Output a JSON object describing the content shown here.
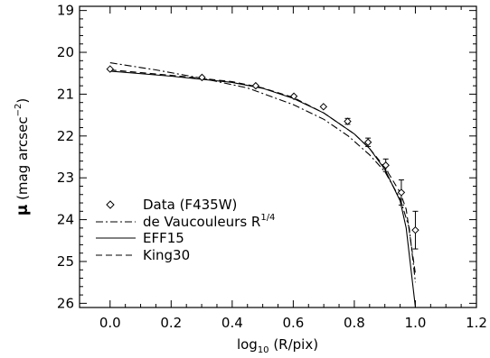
{
  "chart_data": {
    "type": "line",
    "xlabel_parts": [
      "log",
      "10",
      " (R/pix)"
    ],
    "ylabel_parts": [
      "μ",
      " (mag arcsec",
      "−2",
      ")"
    ],
    "xlim": [
      -0.1,
      1.2
    ],
    "ylim": [
      26.1,
      18.9
    ],
    "y_inverted": true,
    "x_ticks": [
      "0.0",
      "0.2",
      "0.4",
      "0.6",
      "0.8",
      "1.0",
      "1.2"
    ],
    "y_ticks": [
      "19",
      "20",
      "21",
      "22",
      "23",
      "24",
      "25",
      "26"
    ],
    "legend_position": "lower-left",
    "series": [
      {
        "name": "Data (F435W)",
        "style": "diamond",
        "x": [
          0.0,
          0.301,
          0.477,
          0.602,
          0.699,
          0.778,
          0.845,
          0.903,
          0.954,
          1.0
        ],
        "y": [
          20.4,
          20.6,
          20.8,
          21.05,
          21.3,
          21.65,
          22.15,
          22.7,
          23.35,
          24.25
        ],
        "yerr": [
          0.03,
          0.03,
          0.04,
          0.05,
          0.06,
          0.07,
          0.1,
          0.15,
          0.3,
          0.45
        ]
      },
      {
        "name_parts": [
          "de Vaucouleurs R",
          "1/4"
        ],
        "style": "dash-dot",
        "x": [
          0.0,
          0.15,
          0.3,
          0.45,
          0.6,
          0.7,
          0.78,
          0.85,
          0.9,
          0.95,
          0.98,
          1.0
        ],
        "y": [
          20.25,
          20.42,
          20.62,
          20.85,
          21.25,
          21.6,
          22.0,
          22.45,
          22.85,
          23.5,
          24.2,
          25.5
        ]
      },
      {
        "name": "EFF15",
        "style": "solid",
        "x": [
          0.0,
          0.2,
          0.4,
          0.5,
          0.6,
          0.7,
          0.8,
          0.85,
          0.9,
          0.95,
          0.97,
          1.0
        ],
        "y": [
          20.45,
          20.57,
          20.72,
          20.86,
          21.1,
          21.45,
          21.95,
          22.3,
          22.8,
          23.55,
          24.2,
          26.1
        ]
      },
      {
        "name": "King30",
        "style": "dashed",
        "x": [
          0.0,
          0.2,
          0.4,
          0.5,
          0.6,
          0.7,
          0.8,
          0.85,
          0.9,
          0.95,
          0.97,
          1.0
        ],
        "y": [
          20.42,
          20.55,
          20.7,
          20.85,
          21.08,
          21.45,
          21.95,
          22.3,
          22.75,
          23.35,
          23.75,
          25.3
        ]
      }
    ]
  }
}
